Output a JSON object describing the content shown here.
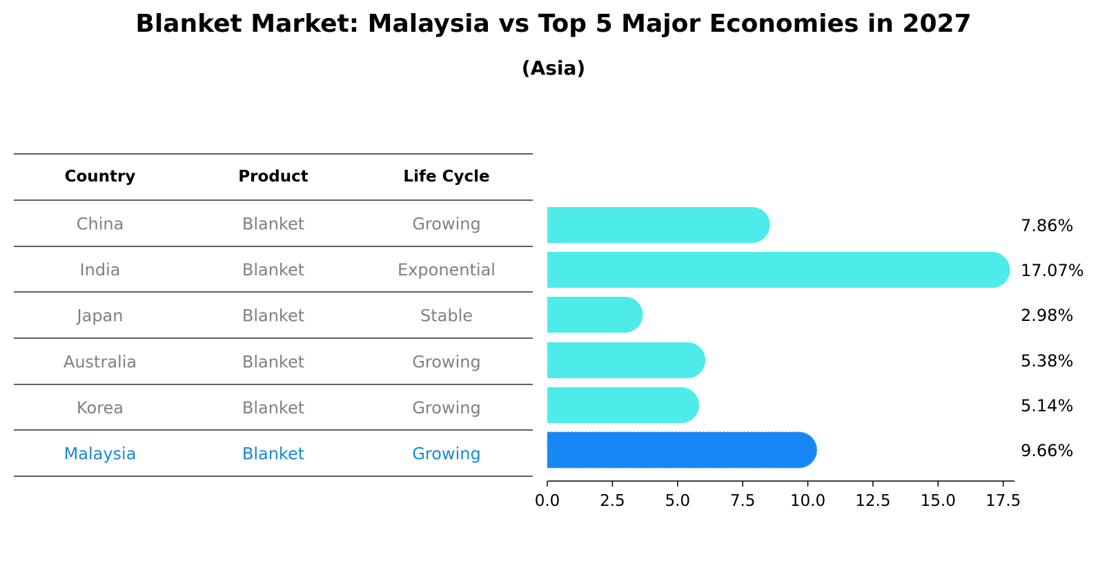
{
  "title": "Blanket Market: Malaysia vs Top 5 Major Economies in 2027",
  "subtitle": "(Asia)",
  "colors": {
    "bar": "#4DECEA",
    "highlight": "#1787F5",
    "table_text": "#808080",
    "highlight_text": "#1787D8"
  },
  "table": {
    "headers": [
      "Country",
      "Product",
      "Life Cycle"
    ],
    "rows": [
      [
        "China",
        "Blanket",
        "Growing"
      ],
      [
        "India",
        "Blanket",
        "Exponential"
      ],
      [
        "Japan",
        "Blanket",
        "Stable"
      ],
      [
        "Australia",
        "Blanket",
        "Growing"
      ],
      [
        "Korea",
        "Blanket",
        "Growing"
      ],
      [
        "Malaysia",
        "Blanket",
        "Growing"
      ]
    ],
    "highlight_row": "Malaysia"
  },
  "chart_data": {
    "type": "bar",
    "orientation": "horizontal",
    "categories": [
      "China",
      "India",
      "Japan",
      "Australia",
      "Korea",
      "Malaysia"
    ],
    "values": [
      7.86,
      17.07,
      2.98,
      5.38,
      5.14,
      9.66
    ],
    "value_labels": [
      "7.86%",
      "17.07%",
      "2.98%",
      "5.38%",
      "5.14%",
      "9.66%"
    ],
    "highlight": "Malaysia",
    "xlim": [
      0,
      18
    ],
    "xticks": [
      0.0,
      2.5,
      5.0,
      7.5,
      10.0,
      12.5,
      15.0,
      17.5
    ],
    "xtick_labels": [
      "0.0",
      "2.5",
      "5.0",
      "7.5",
      "10.0",
      "12.5",
      "15.0",
      "17.5"
    ],
    "grid": false,
    "xlabel": "",
    "ylabel": ""
  }
}
